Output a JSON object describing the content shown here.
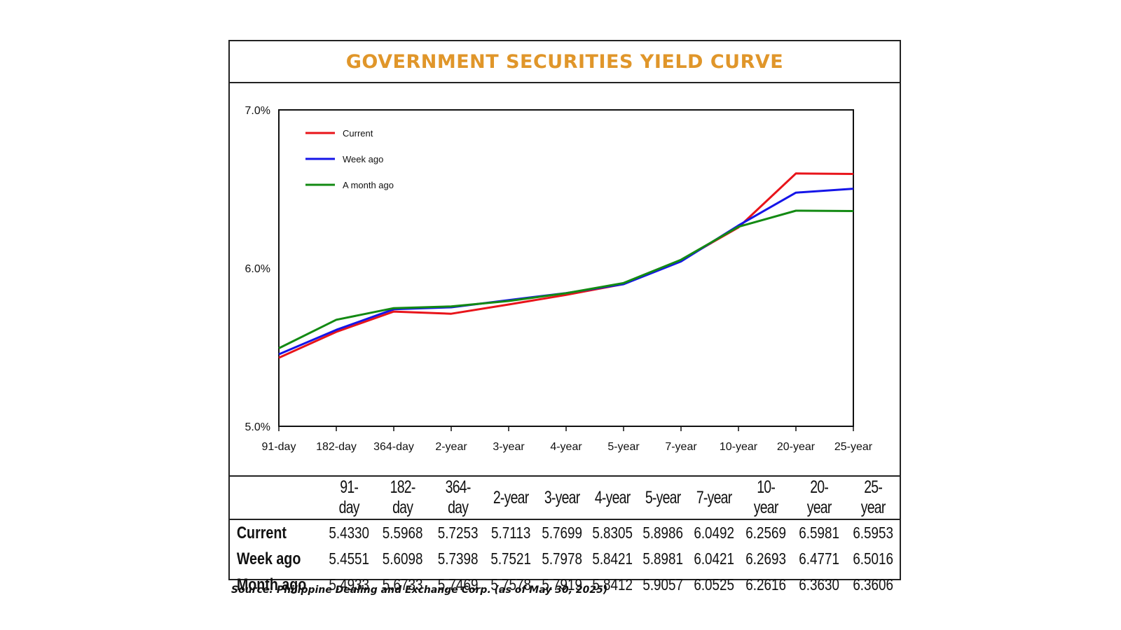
{
  "title": "GOVERNMENT SECURITIES YIELD CURVE",
  "source": "Source: Philippine Dealing and Exchange Corp. (as of May 30, 2025)",
  "colors": {
    "title": "#e0962a",
    "current": "#e8141a",
    "week_ago": "#1515e8",
    "month_ago": "#138a13"
  },
  "chart_data": {
    "type": "line",
    "title": "GOVERNMENT SECURITIES YIELD CURVE",
    "xlabel": "",
    "ylabel": "",
    "ylim": [
      5.0,
      7.0
    ],
    "yticks": [
      "7.0%",
      "6.0%",
      "5.0%"
    ],
    "yticks_values": [
      7.0,
      6.0,
      5.0
    ],
    "categories": [
      "91-day",
      "182-day",
      "364-day",
      "2-year",
      "3-year",
      "4-year",
      "5-year",
      "7-year",
      "10-year",
      "20-year",
      "25-year"
    ],
    "legend_position": "top-left",
    "series": [
      {
        "name": "Current",
        "color": "#e8141a",
        "values": [
          5.433,
          5.5968,
          5.7253,
          5.7113,
          5.7699,
          5.8305,
          5.8986,
          6.0492,
          6.2569,
          6.5981,
          6.5953
        ]
      },
      {
        "name": "Week ago",
        "color": "#1515e8",
        "values": [
          5.4551,
          5.6098,
          5.7398,
          5.7521,
          5.7978,
          5.8421,
          5.8981,
          6.0421,
          6.2693,
          6.4771,
          6.5016
        ]
      },
      {
        "name": "A month ago",
        "color": "#138a13",
        "values": [
          5.4933,
          5.6733,
          5.7469,
          5.7578,
          5.7919,
          5.8412,
          5.9057,
          6.0525,
          6.2616,
          6.363,
          6.3606
        ]
      }
    ]
  },
  "table": {
    "headers": [
      "91-day",
      "182-day",
      "364-day",
      "2-year",
      "3-year",
      "4-year",
      "5-year",
      "7-year",
      "10-year",
      "20-year",
      "25-year"
    ],
    "rows": [
      {
        "label": "Current",
        "values": [
          "5.4330",
          "5.5968",
          "5.7253",
          "5.7113",
          "5.7699",
          "5.8305",
          "5.8986",
          "6.0492",
          "6.2569",
          "6.5981",
          "6.5953"
        ]
      },
      {
        "label": "Week ago",
        "values": [
          "5.4551",
          "5.6098",
          "5.7398",
          "5.7521",
          "5.7978",
          "5.8421",
          "5.8981",
          "6.0421",
          "6.2693",
          "6.4771",
          "6.5016"
        ]
      },
      {
        "label": "Month ago",
        "values": [
          "5.4933",
          "5.6733",
          "5.7469",
          "5.7578",
          "5.7919",
          "5.8412",
          "5.9057",
          "6.0525",
          "6.2616",
          "6.3630",
          "6.3606"
        ]
      }
    ]
  }
}
